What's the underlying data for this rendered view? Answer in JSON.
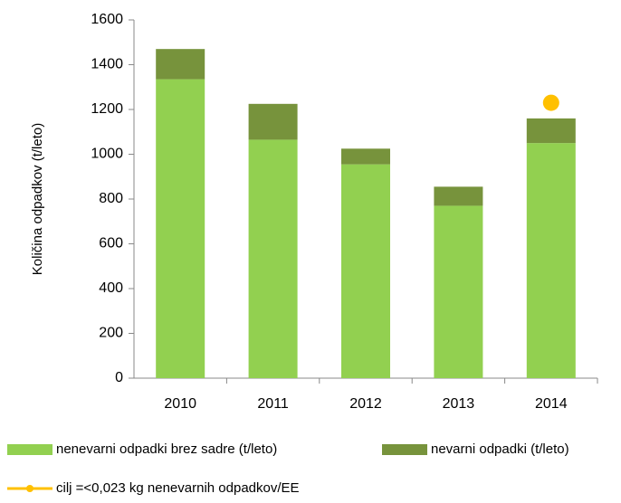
{
  "chart_data": {
    "type": "bar",
    "categories": [
      "2010",
      "2011",
      "2012",
      "2013",
      "2014"
    ],
    "y_axis_label": "Količina  odpadkov (t/leto)",
    "series": [
      {
        "name": "nenevarni odpadki brez sadre (t/leto)",
        "color": "#92d050",
        "values": [
          1335,
          1065,
          955,
          770,
          1050
        ]
      },
      {
        "name": "nevarni odpadki (t/leto)",
        "color": "#77933c",
        "values": [
          135,
          160,
          70,
          85,
          110
        ]
      },
      {
        "name": "cilj =<0,023 kg nenevarnih odpadkov/EE",
        "type": "line",
        "color": "#ffc000",
        "values": [
          null,
          null,
          null,
          null,
          1230
        ]
      }
    ],
    "stacked": true,
    "ylim": [
      0,
      1600
    ],
    "yticks": [
      0,
      200,
      400,
      600,
      800,
      1000,
      1200,
      1400,
      1600
    ],
    "grid": false
  }
}
